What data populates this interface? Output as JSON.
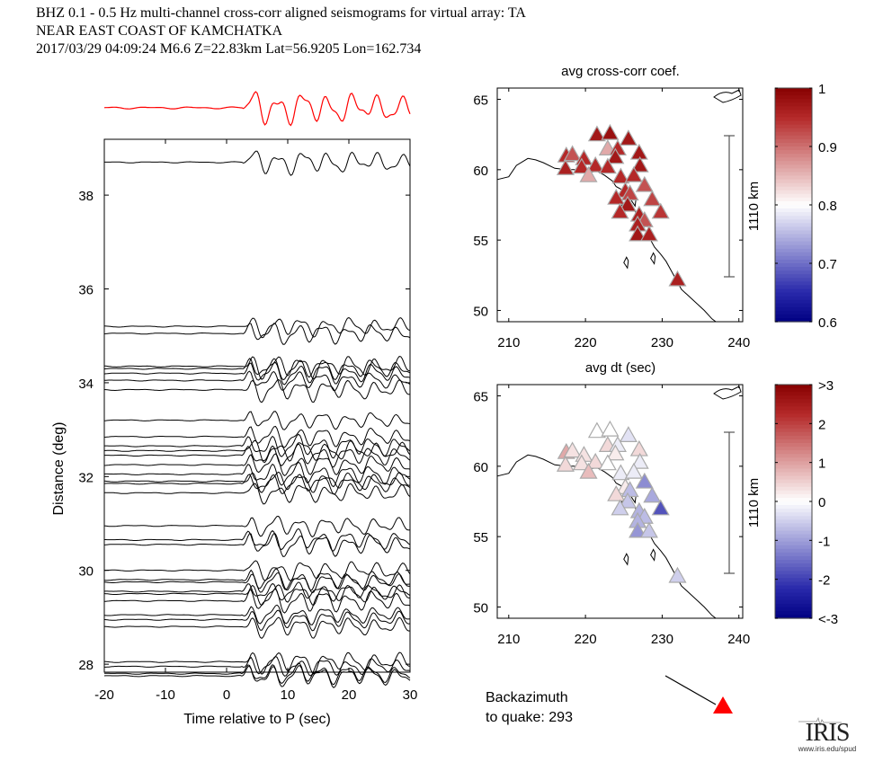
{
  "header": {
    "line1": "BHZ  0.1 - 0.5 Hz  multi-channel cross-corr aligned seismograms for virtual array: TA",
    "line2": "NEAR EAST COAST OF KAMCHATKA",
    "line3": "2017/03/29  04:09:24  M6.6  Z=22.83km Lat=56.9205 Lon=162.734"
  },
  "backazimuth": {
    "label_line1": "Backazimuth",
    "label_line2": "to quake:  293",
    "value": 293,
    "arrow_color": "#000000",
    "marker_color": "#ff0000"
  },
  "logo": {
    "text": "IRIS",
    "url_text": "www.iris.edu/spud"
  },
  "chart_data": [
    {
      "type": "line",
      "name": "seismogram-record-section",
      "title": "",
      "xlabel": "Time relative to P (sec)",
      "ylabel": "Distance (deg)",
      "xlim": [
        -20,
        30
      ],
      "ylim": [
        27.83,
        39.19
      ],
      "xticks": [
        -20,
        -10,
        0,
        10,
        20,
        30
      ],
      "yticks": [
        28,
        30,
        32,
        34,
        36,
        38
      ],
      "stack_trace": {
        "color": "#ff0000",
        "description": "stacked beam trace above section"
      },
      "p_onset_time_sec": 2.5,
      "trace_distances_deg": [
        38.7,
        35.2,
        35.05,
        34.35,
        34.3,
        34.2,
        34.05,
        33.85,
        33.2,
        32.85,
        32.65,
        32.55,
        32.45,
        32.25,
        32.05,
        31.9,
        31.85,
        31.65,
        30.95,
        30.65,
        30.55,
        30.0,
        29.8,
        29.75,
        29.55,
        29.5,
        29.35,
        29.05,
        28.95,
        28.8,
        28.05,
        27.95,
        27.8,
        27.75
      ]
    },
    {
      "type": "scatter",
      "name": "avg-cross-corr-map",
      "title": "avg cross-corr coef.",
      "xlabel": "avg dt (sec)",
      "ylabel": "",
      "xlim": [
        208.5,
        240.5
      ],
      "ylim": [
        49.2,
        65.8
      ],
      "xticks": [
        210,
        220,
        230,
        240
      ],
      "yticks": [
        50,
        55,
        60,
        65
      ],
      "scale_bar_label": "1110 km",
      "colorbar": {
        "min": 0.6,
        "max": 1,
        "ticks": [
          "1",
          "0.9",
          "0.8",
          "0.7",
          "0.6"
        ],
        "colormap": "blue-white-red",
        "center": 0.8
      },
      "stations": [
        {
          "x": 221.5,
          "y": 62.5,
          "v": 0.97
        },
        {
          "x": 223.2,
          "y": 62.6,
          "v": 0.98
        },
        {
          "x": 225.6,
          "y": 62.2,
          "v": 0.97
        },
        {
          "x": 222.9,
          "y": 61.5,
          "v": 0.86
        },
        {
          "x": 224.2,
          "y": 61.5,
          "v": 0.95
        },
        {
          "x": 227.0,
          "y": 61.2,
          "v": 0.97
        },
        {
          "x": 217.5,
          "y": 61.0,
          "v": 0.95
        },
        {
          "x": 218.3,
          "y": 61.1,
          "v": 0.92
        },
        {
          "x": 219.8,
          "y": 60.8,
          "v": 0.95
        },
        {
          "x": 223.9,
          "y": 60.9,
          "v": 0.97
        },
        {
          "x": 227.1,
          "y": 60.3,
          "v": 0.97
        },
        {
          "x": 217.4,
          "y": 60.1,
          "v": 0.96
        },
        {
          "x": 219.5,
          "y": 60.2,
          "v": 0.95
        },
        {
          "x": 221.3,
          "y": 60.3,
          "v": 0.95
        },
        {
          "x": 222.9,
          "y": 60.2,
          "v": 0.95
        },
        {
          "x": 220.4,
          "y": 59.6,
          "v": 0.86
        },
        {
          "x": 224.6,
          "y": 59.5,
          "v": 0.95
        },
        {
          "x": 226.3,
          "y": 59.6,
          "v": 0.95
        },
        {
          "x": 227.7,
          "y": 58.9,
          "v": 0.92
        },
        {
          "x": 225.2,
          "y": 58.5,
          "v": 0.95
        },
        {
          "x": 225.8,
          "y": 58.3,
          "v": 0.93
        },
        {
          "x": 224.0,
          "y": 58.0,
          "v": 0.95
        },
        {
          "x": 228.7,
          "y": 57.9,
          "v": 0.93
        },
        {
          "x": 225.5,
          "y": 57.5,
          "v": 0.97
        },
        {
          "x": 224.5,
          "y": 57.0,
          "v": 0.95
        },
        {
          "x": 229.8,
          "y": 57.0,
          "v": 0.94
        },
        {
          "x": 227.0,
          "y": 56.8,
          "v": 0.96
        },
        {
          "x": 227.7,
          "y": 56.4,
          "v": 0.92
        },
        {
          "x": 226.8,
          "y": 56.1,
          "v": 0.96
        },
        {
          "x": 226.8,
          "y": 55.4,
          "v": 0.97
        },
        {
          "x": 228.3,
          "y": 55.4,
          "v": 0.96
        },
        {
          "x": 232.0,
          "y": 52.2,
          "v": 0.96
        }
      ]
    },
    {
      "type": "scatter",
      "name": "avg-dt-map",
      "title": "avg dt (sec)",
      "xlabel": "",
      "ylabel": "",
      "xlim": [
        208.5,
        240.5
      ],
      "ylim": [
        49.2,
        65.8
      ],
      "xticks": [
        210,
        220,
        230,
        240
      ],
      "yticks": [
        50,
        55,
        60,
        65
      ],
      "scale_bar_label": "1110 km",
      "colorbar": {
        "min": -3,
        "max": 3,
        "ticks": [
          ">3",
          "2",
          "1",
          "0",
          "-1",
          "-2",
          "<-3"
        ],
        "colormap": "blue-white-red",
        "center": 0
      },
      "stations": [
        {
          "x": 221.5,
          "y": 62.5,
          "v": 0.0
        },
        {
          "x": 223.2,
          "y": 62.6,
          "v": 0.0
        },
        {
          "x": 225.6,
          "y": 62.2,
          "v": -0.3
        },
        {
          "x": 222.9,
          "y": 61.5,
          "v": 0.4
        },
        {
          "x": 224.2,
          "y": 61.5,
          "v": -0.2
        },
        {
          "x": 227.0,
          "y": 61.2,
          "v": 0.4
        },
        {
          "x": 217.5,
          "y": 61.0,
          "v": 0.9
        },
        {
          "x": 218.3,
          "y": 61.1,
          "v": 0.3
        },
        {
          "x": 219.8,
          "y": 60.8,
          "v": 0.3
        },
        {
          "x": 223.9,
          "y": 60.9,
          "v": 0.2
        },
        {
          "x": 227.1,
          "y": 60.3,
          "v": -0.2
        },
        {
          "x": 217.4,
          "y": 60.1,
          "v": 0.4
        },
        {
          "x": 219.5,
          "y": 60.2,
          "v": 0.3
        },
        {
          "x": 221.3,
          "y": 60.3,
          "v": 0.4
        },
        {
          "x": 222.9,
          "y": 60.2,
          "v": 0.0
        },
        {
          "x": 220.4,
          "y": 59.6,
          "v": 0.7
        },
        {
          "x": 224.6,
          "y": 59.5,
          "v": -0.2
        },
        {
          "x": 226.3,
          "y": 59.6,
          "v": -0.2
        },
        {
          "x": 227.7,
          "y": 58.9,
          "v": -1.2
        },
        {
          "x": 225.2,
          "y": 58.5,
          "v": 0.2
        },
        {
          "x": 225.8,
          "y": 58.3,
          "v": -0.7
        },
        {
          "x": 224.0,
          "y": 58.0,
          "v": 0.4
        },
        {
          "x": 228.7,
          "y": 57.9,
          "v": -0.9
        },
        {
          "x": 225.5,
          "y": 57.5,
          "v": -0.6
        },
        {
          "x": 224.5,
          "y": 57.0,
          "v": -0.5
        },
        {
          "x": 229.8,
          "y": 57.0,
          "v": -1.8
        },
        {
          "x": 227.0,
          "y": 56.8,
          "v": -0.8
        },
        {
          "x": 227.7,
          "y": 56.4,
          "v": -0.7
        },
        {
          "x": 226.8,
          "y": 56.1,
          "v": -0.8
        },
        {
          "x": 226.8,
          "y": 55.4,
          "v": -1.1
        },
        {
          "x": 228.3,
          "y": 55.4,
          "v": -0.6
        },
        {
          "x": 232.0,
          "y": 52.2,
          "v": -0.5
        }
      ]
    }
  ]
}
